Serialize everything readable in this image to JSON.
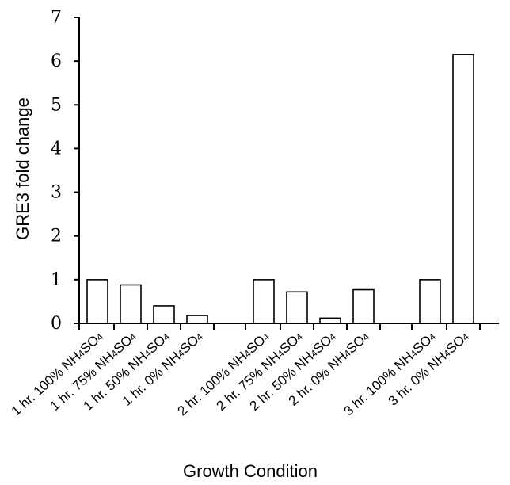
{
  "chart_data": {
    "type": "bar",
    "title": "",
    "xlabel": "Growth Condition",
    "ylabel": "GRE3 fold change",
    "ylim": [
      0,
      7
    ],
    "yticks": [
      0,
      1,
      2,
      3,
      4,
      5,
      6,
      7
    ],
    "grid": false,
    "groups": [
      {
        "categories": [
          {
            "pre": "1 hr. 100% NH",
            "sub1": "4",
            "mid": "SO",
            "sub2": "4"
          },
          {
            "pre": "1 hr. 75% NH",
            "sub1": "4",
            "mid": "SO",
            "sub2": "4"
          },
          {
            "pre": "1 hr. 50% NH",
            "sub1": "4",
            "mid": "SO",
            "sub2": "4"
          },
          {
            "pre": "1 hr. 0% NH",
            "sub1": "4",
            "mid": "SO",
            "sub2": "4"
          }
        ],
        "values": [
          1.0,
          0.88,
          0.4,
          0.18
        ]
      },
      {
        "categories": [
          {
            "pre": "2 hr. 100% NH",
            "sub1": "4",
            "mid": "SO",
            "sub2": "4"
          },
          {
            "pre": "2 hr. 75% NH",
            "sub1": "4",
            "mid": "SO",
            "sub2": "4"
          },
          {
            "pre": "2 hr. 50% NH",
            "sub1": "4",
            "mid": "SO",
            "sub2": "4"
          },
          {
            "pre": "2 hr. 0% NH",
            "sub1": "4",
            "mid": "SO",
            "sub2": "4"
          }
        ],
        "values": [
          1.0,
          0.72,
          0.12,
          0.77
        ]
      },
      {
        "categories": [
          {
            "pre": "3 hr. 100% NH",
            "sub1": "4",
            "mid": "SO",
            "sub2": "4"
          },
          {
            "pre": "3 hr. 0% NH",
            "sub1": "4",
            "mid": "SO",
            "sub2": "4"
          }
        ],
        "values": [
          1.0,
          6.15
        ]
      }
    ]
  }
}
